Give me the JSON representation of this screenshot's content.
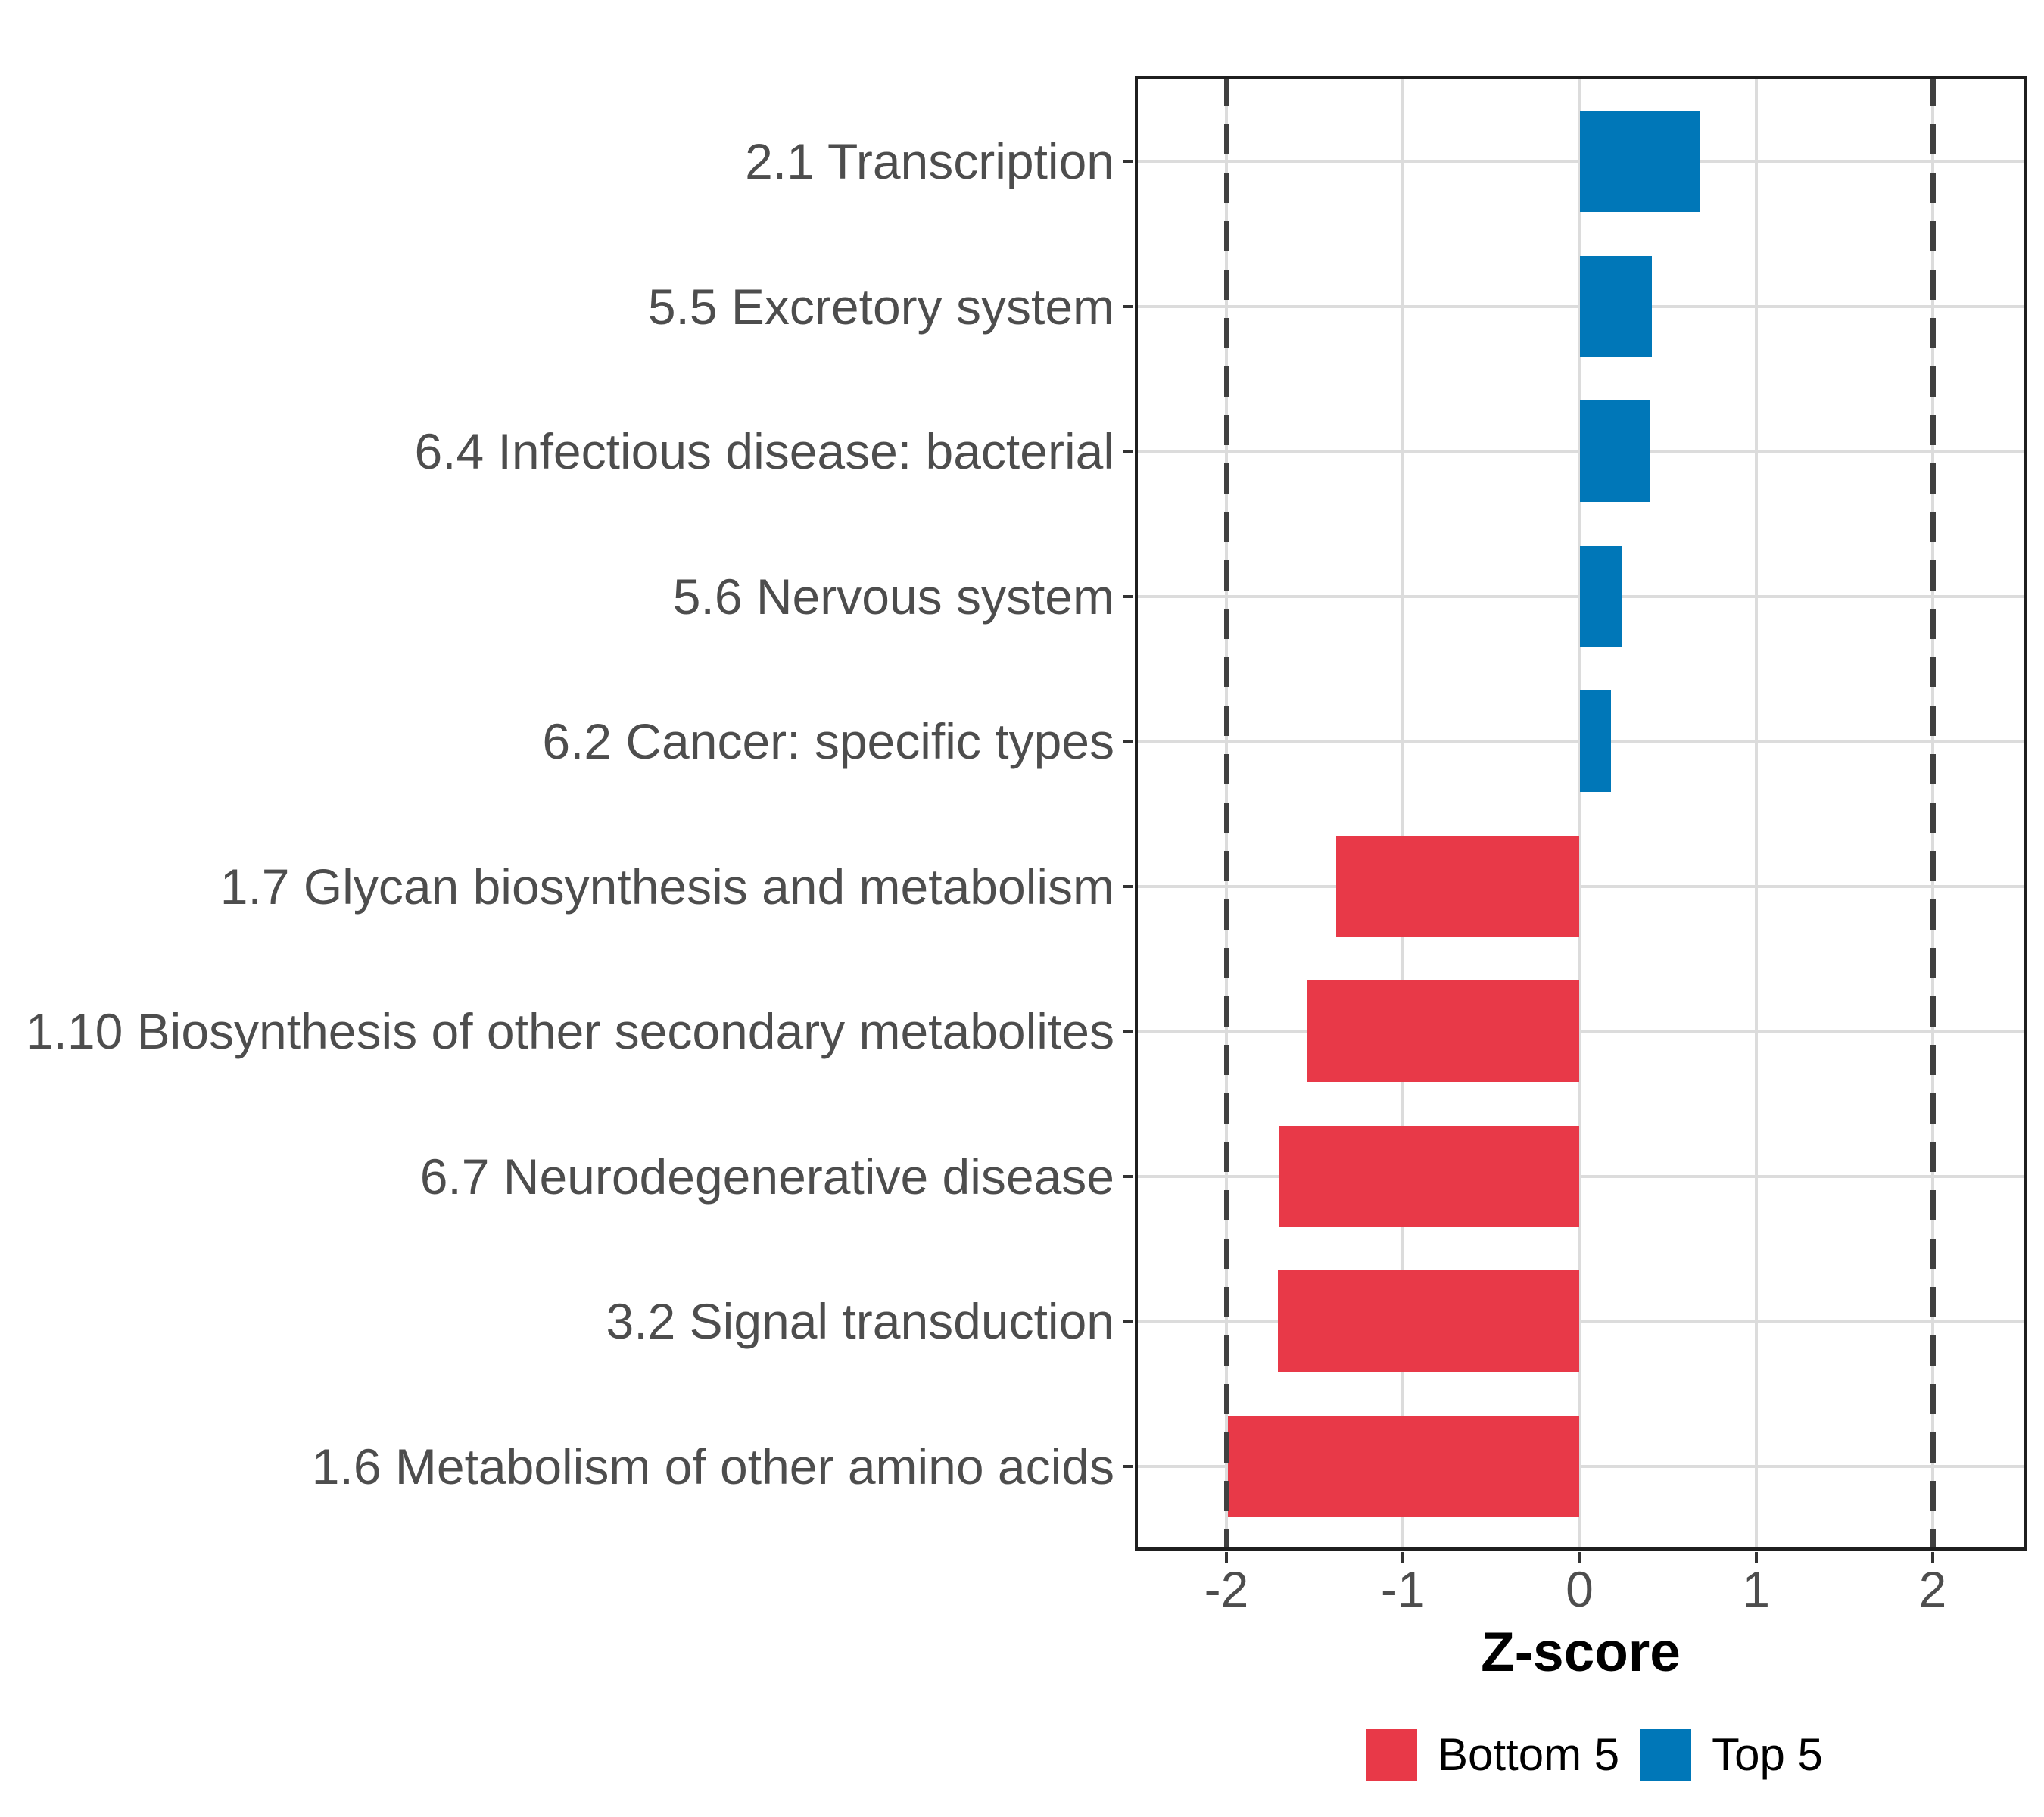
{
  "chart_data": {
    "type": "bar",
    "orientation": "horizontal",
    "title": "",
    "xlabel": "Z-score",
    "ylabel": "",
    "grid": true,
    "legend_position": "bottom",
    "x_breaks": [
      -2,
      -1,
      0,
      1,
      2
    ],
    "xlim": [
      -2.52,
      2.53
    ],
    "reference_lines": [
      -2,
      2
    ],
    "reference_line_style": "dashed",
    "categories": [
      "2.1 Transcription",
      "5.5 Excretory system",
      "6.4 Infectious disease: bacterial",
      "5.6 Nervous system",
      "6.2 Cancer: specific types",
      "1.7 Glycan biosynthesis and metabolism",
      "1.10 Biosynthesis of other secondary metabolites",
      "6.7 Neurodegenerative disease",
      "3.2 Signal transduction",
      "1.6 Metabolism of other amino acids"
    ],
    "values": [
      0.68,
      0.41,
      0.4,
      0.24,
      0.18,
      -1.38,
      -1.54,
      -1.7,
      -1.71,
      -1.99
    ],
    "groups": [
      "Top 5",
      "Top 5",
      "Top 5",
      "Top 5",
      "Top 5",
      "Bottom 5",
      "Bottom 5",
      "Bottom 5",
      "Bottom 5",
      "Bottom 5"
    ],
    "legend": [
      {
        "label": "Bottom 5",
        "color": "#E83948"
      },
      {
        "label": "Top 5",
        "color": "#0077B8"
      }
    ]
  },
  "colors": {
    "bar_bottom5": "#E83948",
    "bar_top5": "#0077B8",
    "gridline": "#DCDCDC",
    "panel_border": "#1f1f1f",
    "reference_line": "#404040",
    "axis_text": "#4D4D4D",
    "axis_title": "#000000",
    "background": "#ffffff"
  }
}
